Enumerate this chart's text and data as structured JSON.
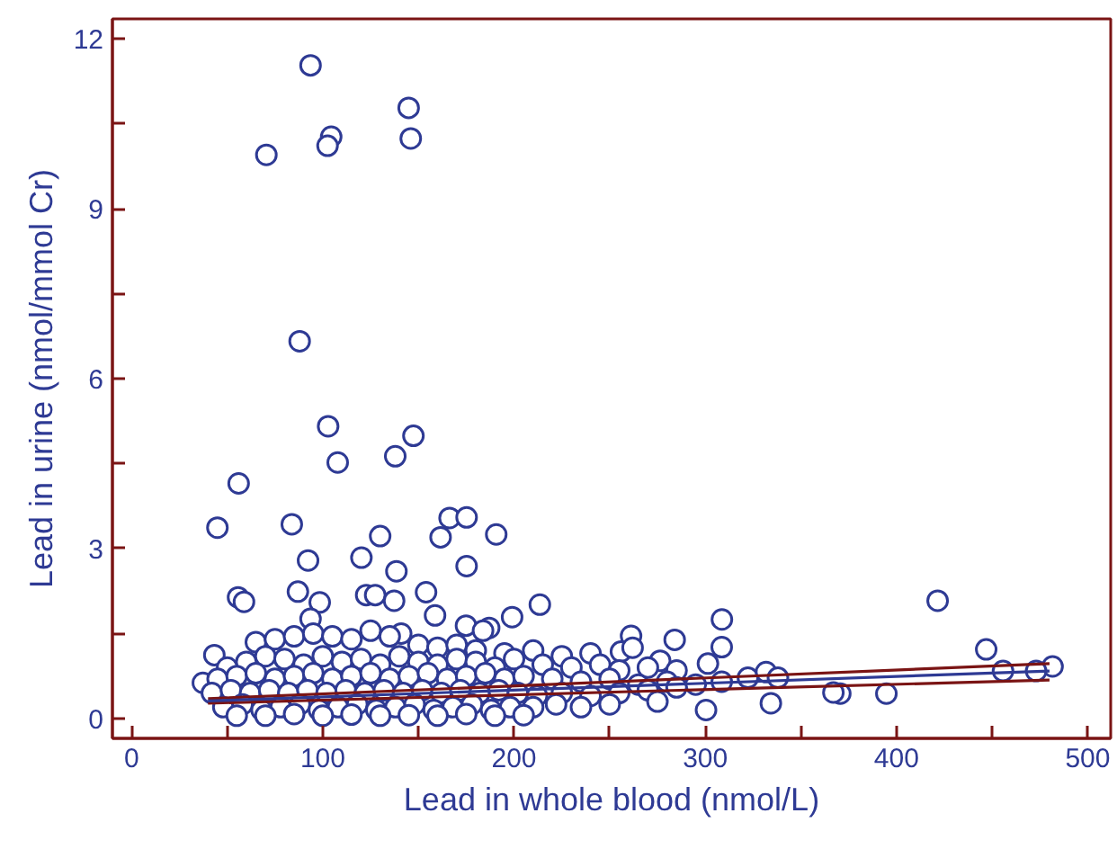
{
  "chart_data": {
    "type": "scatter",
    "xlabel": "Lead in whole blood (nmol/L)",
    "ylabel": "Lead in urine (nmol/mmol Cr)",
    "xlim": [
      -10,
      512
    ],
    "ylim": [
      -0.35,
      12.35
    ],
    "xticks": [
      0,
      {
        "value": 50,
        "label": null
      },
      100,
      {
        "value": 150,
        "label": null
      },
      200,
      {
        "value": 250,
        "label": null
      },
      300,
      {
        "value": 350,
        "label": null
      },
      400,
      {
        "value": 450,
        "label": null
      },
      500
    ],
    "yticks": [
      0,
      {
        "value": 1.5,
        "label": null
      },
      3,
      {
        "value": 4.5,
        "label": null
      },
      6,
      {
        "value": 7.5,
        "label": null
      },
      9,
      {
        "value": 10.5,
        "label": null
      },
      12
    ],
    "grid": false,
    "line_style": "solid",
    "series": [
      {
        "marker": "circle",
        "color": "#2e3a94",
        "x": [
          93.6,
          144.9,
          104.4,
          102.5,
          146,
          70.5,
          87.9,
          102.8,
          147.4,
          137.9,
          107.8,
          56,
          44.9,
          83.8,
          166.3,
          175.2,
          190.7,
          130,
          161.6,
          92.3,
          120.2,
          138.5,
          175.2,
          421.5,
          446.9,
          481.6,
          455.7,
          473,
          394.7,
          370.6,
          367,
          334.3,
          300.4,
          308.7,
          308.6,
          301.4,
          308.6,
          322.3,
          331.8,
          338,
          284,
          261.2,
          255.9,
          276.4,
          213.5,
          55.7,
          58.8,
          87,
          98.4,
          122.7,
          127.4,
          137.3,
          154,
          158.7,
          199,
          174.9,
          187,
          183.8,
          93.6,
          141,
          43.3,
          37.3,
          65,
          75,
          85,
          95,
          105,
          115,
          125,
          135,
          150,
          160,
          170,
          180,
          195,
          210,
          225,
          240,
          262,
          50,
          60,
          70,
          80,
          90,
          100,
          110,
          120,
          130,
          140,
          150,
          160,
          170,
          180,
          190,
          200,
          215,
          230,
          245,
          255,
          270,
          285,
          45,
          55,
          65,
          75,
          85,
          95,
          105,
          115,
          125,
          135,
          145,
          155,
          165,
          175,
          185,
          195,
          205,
          220,
          235,
          250,
          265,
          280,
          295,
          42,
          52,
          62,
          72,
          82,
          92,
          102,
          112,
          122,
          132,
          142,
          152,
          162,
          172,
          182,
          192,
          202,
          212,
          225,
          240,
          255,
          270,
          285,
          48,
          58,
          68,
          78,
          88,
          98,
          108,
          118,
          128,
          138,
          148,
          158,
          168,
          178,
          188,
          198,
          210,
          222,
          235,
          250,
          275,
          55,
          70,
          85,
          100,
          115,
          130,
          145,
          160,
          175,
          190,
          205
        ],
        "values": [
          11.53,
          10.78,
          10.27,
          10.11,
          10.24,
          9.95,
          6.66,
          5.16,
          4.99,
          4.63,
          4.52,
          4.15,
          3.37,
          3.43,
          3.54,
          3.55,
          3.25,
          3.22,
          3.2,
          2.79,
          2.84,
          2.6,
          2.69,
          2.08,
          1.22,
          0.92,
          0.84,
          0.84,
          0.44,
          0.44,
          0.46,
          0.27,
          0.15,
          1.75,
          1.26,
          0.97,
          0.65,
          0.72,
          0.82,
          0.72,
          1.39,
          1.46,
          1.18,
          1.02,
          2.01,
          2.14,
          2.06,
          2.24,
          2.05,
          2.18,
          2.18,
          2.08,
          2.23,
          1.82,
          1.79,
          1.64,
          1.6,
          1.55,
          1.76,
          1.5,
          1.12,
          0.63,
          1.35,
          1.4,
          1.45,
          1.5,
          1.45,
          1.4,
          1.55,
          1.45,
          1.3,
          1.25,
          1.3,
          1.2,
          1.15,
          1.2,
          1.1,
          1.15,
          1.25,
          0.9,
          1.0,
          1.1,
          1.05,
          0.95,
          1.1,
          1.0,
          1.05,
          0.95,
          1.1,
          1.0,
          0.95,
          1.05,
          1.0,
          0.9,
          1.05,
          0.95,
          0.9,
          0.95,
          0.85,
          0.9,
          0.85,
          0.7,
          0.75,
          0.8,
          0.7,
          0.75,
          0.8,
          0.7,
          0.75,
          0.8,
          0.7,
          0.75,
          0.8,
          0.7,
          0.75,
          0.8,
          0.7,
          0.75,
          0.7,
          0.65,
          0.7,
          0.6,
          0.65,
          0.6,
          0.45,
          0.5,
          0.45,
          0.5,
          0.45,
          0.5,
          0.45,
          0.5,
          0.45,
          0.5,
          0.45,
          0.5,
          0.45,
          0.5,
          0.45,
          0.5,
          0.45,
          0.4,
          0.45,
          0.4,
          0.45,
          0.5,
          0.55,
          0.2,
          0.25,
          0.15,
          0.2,
          0.25,
          0.15,
          0.2,
          0.25,
          0.15,
          0.2,
          0.25,
          0.15,
          0.2,
          0.25,
          0.15,
          0.2,
          0.2,
          0.25,
          0.2,
          0.25,
          0.3,
          0.05,
          0.05,
          0.08,
          0.05,
          0.07,
          0.05,
          0.06,
          0.05,
          0.08,
          0.05,
          0.06
        ]
      },
      {
        "type": "line",
        "color": "#7a1414",
        "x": [
          40,
          480
        ],
        "values": [
          0.35,
          0.97
        ]
      },
      {
        "type": "line",
        "color": "#7a1414",
        "x": [
          40,
          480
        ],
        "values": [
          0.27,
          0.68
        ]
      },
      {
        "type": "line",
        "color": "#2e3a94",
        "x": [
          40,
          480
        ],
        "values": [
          0.31,
          0.84
        ]
      }
    ]
  }
}
